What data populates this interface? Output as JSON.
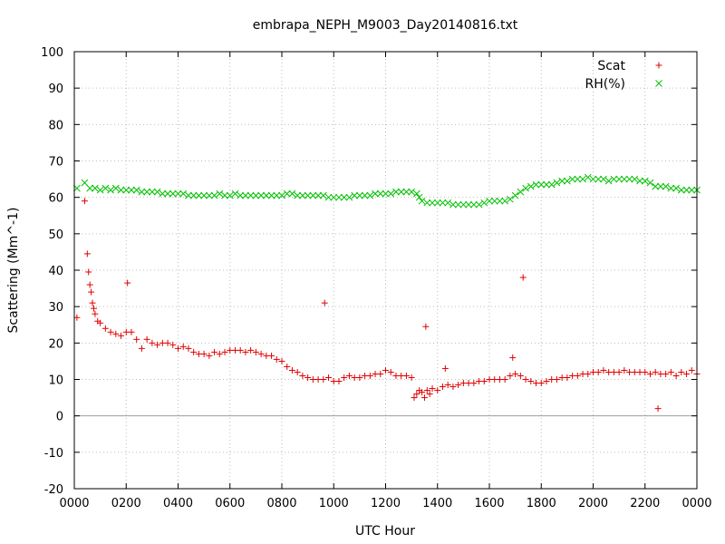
{
  "chart_data": {
    "type": "scatter",
    "title": "embrapa_NEPH_M9003_Day20140816.txt",
    "xlabel": "UTC Hour",
    "ylabel": "Scattering (Mm^-1)",
    "xlim": [
      0,
      24
    ],
    "ylim": [
      -20,
      100
    ],
    "xticks": [
      0,
      2,
      4,
      6,
      8,
      10,
      12,
      14,
      16,
      18,
      20,
      22,
      24
    ],
    "xtick_labels": [
      "0000",
      "0200",
      "0400",
      "0600",
      "0800",
      "1000",
      "1200",
      "1400",
      "1600",
      "1800",
      "2000",
      "2200",
      "0000"
    ],
    "yticks": [
      -20,
      -10,
      0,
      10,
      20,
      30,
      40,
      50,
      60,
      70,
      80,
      90,
      100
    ],
    "ytick_labels": [
      "-20",
      "-10",
      "0",
      "10",
      "20",
      "30",
      "40",
      "50",
      "60",
      "70",
      "80",
      "90",
      "100"
    ],
    "grid": true,
    "zero_line": true,
    "legend_position": "top-right",
    "series": [
      {
        "name": "Scat",
        "marker": "plus",
        "color": "#e00000",
        "x": [
          0.1,
          0.4,
          0.5,
          0.55,
          0.6,
          0.65,
          0.7,
          0.75,
          0.8,
          0.9,
          1.0,
          1.2,
          1.4,
          1.6,
          1.8,
          2.0,
          2.05,
          2.2,
          2.4,
          2.6,
          2.8,
          3.0,
          3.2,
          3.4,
          3.6,
          3.8,
          4.0,
          4.2,
          4.4,
          4.6,
          4.8,
          5.0,
          5.2,
          5.4,
          5.6,
          5.8,
          6.0,
          6.2,
          6.4,
          6.6,
          6.8,
          7.0,
          7.2,
          7.4,
          7.6,
          7.8,
          8.0,
          8.2,
          8.4,
          8.6,
          8.8,
          9.0,
          9.2,
          9.4,
          9.6,
          9.65,
          9.8,
          10.0,
          10.2,
          10.4,
          10.6,
          10.8,
          11.0,
          11.2,
          11.4,
          11.6,
          11.8,
          12.0,
          12.2,
          12.4,
          12.6,
          12.8,
          13.0,
          13.1,
          13.2,
          13.3,
          13.4,
          13.5,
          13.55,
          13.6,
          13.7,
          13.8,
          14.0,
          14.2,
          14.3,
          14.4,
          14.6,
          14.8,
          15.0,
          15.2,
          15.4,
          15.6,
          15.8,
          16.0,
          16.2,
          16.4,
          16.6,
          16.8,
          16.9,
          17.0,
          17.2,
          17.3,
          17.4,
          17.6,
          17.8,
          18.0,
          18.2,
          18.4,
          18.6,
          18.8,
          19.0,
          19.2,
          19.4,
          19.6,
          19.8,
          20.0,
          20.2,
          20.4,
          20.6,
          20.8,
          21.0,
          21.2,
          21.4,
          21.6,
          21.8,
          22.0,
          22.2,
          22.4,
          22.5,
          22.6,
          22.8,
          23.0,
          23.2,
          23.4,
          23.6,
          23.8,
          24.0
        ],
        "y": [
          27,
          59,
          44.5,
          39.5,
          36,
          34,
          31,
          29.5,
          28,
          26,
          25.5,
          24,
          23,
          22.5,
          22,
          23,
          36.5,
          23,
          21,
          18.5,
          21,
          20,
          19.5,
          20,
          20,
          19.5,
          18.5,
          19,
          18.5,
          17.5,
          17,
          17,
          16.5,
          17.5,
          17,
          17.5,
          18,
          18,
          18,
          17.5,
          18,
          17.5,
          17,
          16.5,
          16.5,
          15.5,
          15,
          13.5,
          12.5,
          12,
          11,
          10.5,
          10,
          10,
          10,
          31,
          10.5,
          9.5,
          9.5,
          10.5,
          11,
          10.5,
          10.5,
          11,
          11,
          11.5,
          11.5,
          12.5,
          12,
          11,
          11,
          11,
          10.5,
          5,
          6,
          7,
          6.5,
          5,
          24.5,
          7,
          6,
          7.5,
          7,
          8,
          13,
          8.5,
          8,
          8.5,
          9,
          9,
          9,
          9.5,
          9.5,
          10,
          10,
          10,
          10,
          11,
          16,
          11.5,
          11,
          38,
          10,
          9.5,
          9,
          9,
          9.5,
          10,
          10,
          10.5,
          10.5,
          11,
          11,
          11.5,
          11.5,
          12,
          12,
          12.5,
          12,
          12,
          12,
          12.5,
          12,
          12,
          12,
          12,
          11.5,
          12,
          2,
          11.5,
          11.5,
          12,
          11,
          12,
          11.5,
          12.5,
          11.5
        ]
      },
      {
        "name": "RH(%)",
        "marker": "cross",
        "color": "#00c000",
        "x": [
          0.1,
          0.4,
          0.6,
          0.8,
          1.0,
          1.2,
          1.4,
          1.6,
          1.8,
          2.0,
          2.2,
          2.4,
          2.6,
          2.8,
          3.0,
          3.2,
          3.4,
          3.6,
          3.8,
          4.0,
          4.2,
          4.4,
          4.6,
          4.8,
          5.0,
          5.2,
          5.4,
          5.6,
          5.8,
          6.0,
          6.2,
          6.4,
          6.6,
          6.8,
          7.0,
          7.2,
          7.4,
          7.6,
          7.8,
          8.0,
          8.2,
          8.4,
          8.6,
          8.8,
          9.0,
          9.2,
          9.4,
          9.6,
          9.8,
          10.0,
          10.2,
          10.4,
          10.6,
          10.8,
          11.0,
          11.2,
          11.4,
          11.6,
          11.8,
          12.0,
          12.2,
          12.4,
          12.6,
          12.8,
          13.0,
          13.2,
          13.3,
          13.4,
          13.6,
          13.8,
          14.0,
          14.2,
          14.4,
          14.6,
          14.8,
          15.0,
          15.2,
          15.4,
          15.6,
          15.8,
          16.0,
          16.2,
          16.4,
          16.6,
          16.8,
          17.0,
          17.2,
          17.4,
          17.6,
          17.8,
          18.0,
          18.2,
          18.4,
          18.6,
          18.8,
          19.0,
          19.2,
          19.4,
          19.6,
          19.8,
          20.0,
          20.2,
          20.4,
          20.6,
          20.8,
          21.0,
          21.2,
          21.4,
          21.6,
          21.8,
          22.0,
          22.2,
          22.4,
          22.6,
          22.8,
          23.0,
          23.2,
          23.4,
          23.6,
          23.8,
          24.0
        ],
        "y": [
          62.5,
          64,
          62.5,
          62.5,
          62,
          62.5,
          62,
          62.5,
          62,
          62,
          62,
          62,
          61.5,
          61.5,
          61.5,
          61.5,
          61,
          61,
          61,
          61,
          61,
          60.5,
          60.5,
          60.5,
          60.5,
          60.5,
          60.5,
          61,
          60.5,
          60.5,
          61,
          60.5,
          60.5,
          60.5,
          60.5,
          60.5,
          60.5,
          60.5,
          60.5,
          60.5,
          61,
          61,
          60.5,
          60.5,
          60.5,
          60.5,
          60.5,
          60.5,
          60,
          60,
          60,
          60,
          60,
          60.5,
          60.5,
          60.5,
          60.5,
          61,
          61,
          61,
          61,
          61.5,
          61.5,
          61.5,
          61.5,
          61,
          60,
          59,
          58.5,
          58.5,
          58.5,
          58.5,
          58.5,
          58,
          58,
          58,
          58,
          58,
          58,
          58.5,
          59,
          59,
          59,
          59,
          59.5,
          60.5,
          61.5,
          62.5,
          63,
          63.5,
          63.5,
          63.5,
          63.5,
          64,
          64.5,
          64.5,
          65,
          65,
          65,
          65.5,
          65,
          65,
          65,
          64.5,
          65,
          65,
          65,
          65,
          65,
          64.5,
          64.5,
          64,
          63,
          63,
          63,
          62.5,
          62.5,
          62,
          62,
          62,
          62
        ]
      }
    ]
  }
}
